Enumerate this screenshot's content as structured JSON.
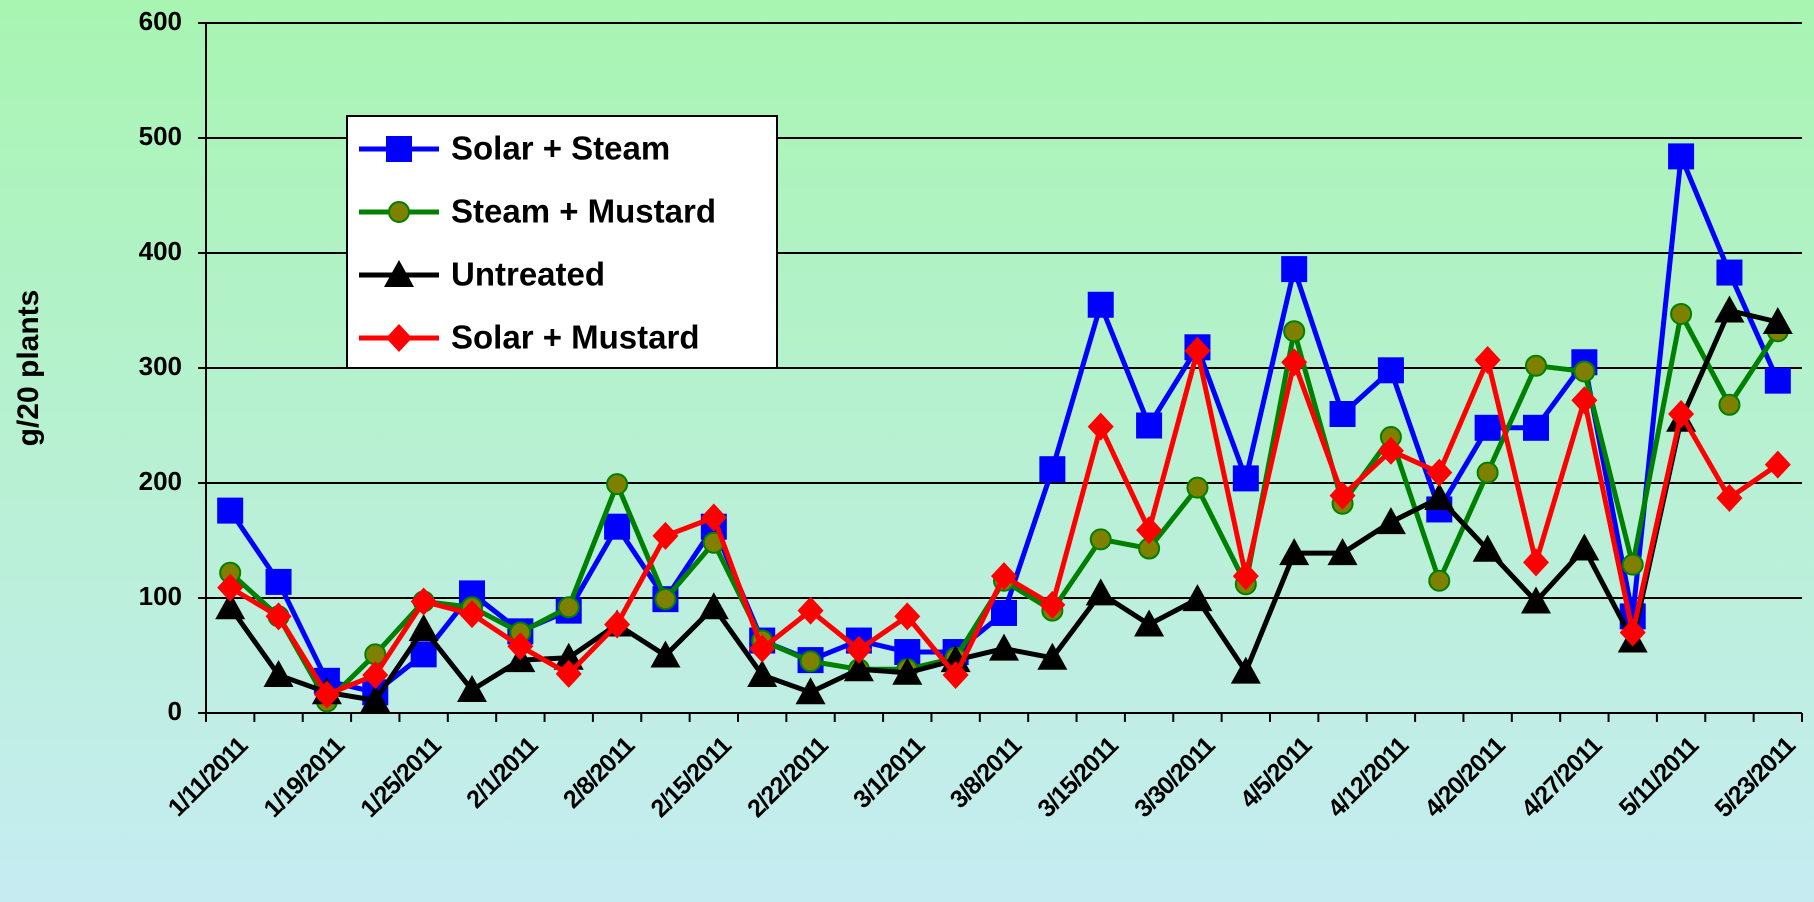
{
  "chart_data": {
    "type": "line",
    "y_label": "g/20 plants",
    "categories": [
      "1/11/2011",
      null,
      "1/19/2011",
      null,
      "1/25/2011",
      null,
      "2/1/2011",
      null,
      "2/8/2011",
      null,
      "2/15/2011",
      null,
      "2/22/2011",
      null,
      "3/1/2011",
      null,
      "3/8/2011",
      null,
      "3/15/2011",
      null,
      "3/30/2011",
      null,
      "4/5/2011",
      null,
      "4/12/2011",
      null,
      "4/20/2011",
      null,
      "4/27/2011",
      null,
      "5/11/2011",
      null,
      "5/23/2011"
    ],
    "ylim": [
      0,
      600
    ],
    "yticks": [
      0,
      100,
      200,
      300,
      400,
      500,
      600
    ],
    "grid": true,
    "legend": "upper left",
    "series": [
      {
        "name": "Solar + Steam",
        "color": "#0000ff",
        "marker": "square",
        "values": [
          176,
          114,
          28,
          18,
          51,
          104,
          71,
          89,
          162,
          99,
          162,
          63,
          46,
          63,
          53,
          53,
          87,
          212,
          355,
          250,
          318,
          204,
          386,
          260,
          298,
          177,
          248,
          248,
          305,
          84,
          484,
          383,
          289
        ]
      },
      {
        "name": "Steam + Mustard",
        "color": "#008000",
        "marker": "circle",
        "values": [
          122,
          84,
          10,
          51,
          97,
          92,
          70,
          92,
          199,
          99,
          148,
          63,
          45,
          38,
          38,
          48,
          115,
          89,
          151,
          143,
          196,
          112,
          332,
          182,
          240,
          115,
          209,
          302,
          297,
          129,
          347,
          268,
          332
        ]
      },
      {
        "name": "Untreated",
        "color": "#000000",
        "marker": "triangle",
        "values": [
          92,
          33,
          18,
          11,
          73,
          20,
          46,
          48,
          77,
          50,
          92,
          33,
          18,
          38,
          35,
          46,
          56,
          48,
          104,
          77,
          99,
          36,
          139,
          139,
          166,
          187,
          142,
          97,
          143,
          63,
          255,
          350,
          340
        ]
      },
      {
        "name": "Solar + Mustard",
        "color": "#ff0000",
        "marker": "diamond",
        "values": [
          109,
          84,
          16,
          33,
          97,
          86,
          58,
          34,
          77,
          154,
          170,
          56,
          89,
          55,
          84,
          33,
          119,
          94,
          249,
          159,
          315,
          119,
          305,
          189,
          228,
          209,
          307,
          131,
          272,
          70,
          260,
          187,
          216
        ]
      }
    ]
  }
}
